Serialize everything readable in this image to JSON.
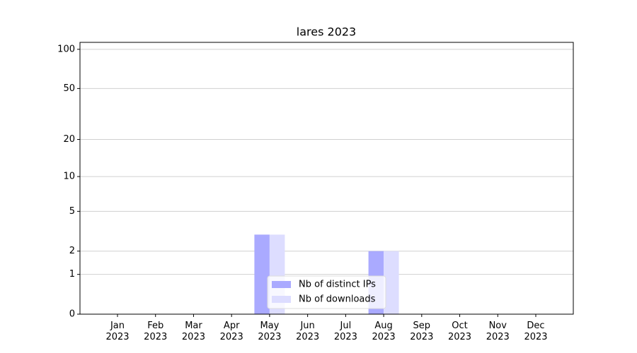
{
  "chart_data": {
    "type": "bar",
    "title": "lares 2023",
    "categories": [
      "Jan\n2023",
      "Feb\n2023",
      "Mar\n2023",
      "Apr\n2023",
      "May\n2023",
      "Jun\n2023",
      "Jul\n2023",
      "Aug\n2023",
      "Sep\n2023",
      "Oct\n2023",
      "Nov\n2023",
      "Dec\n2023"
    ],
    "series": [
      {
        "name": "Nb of distinct IPs",
        "color": "#aaaaff",
        "values": [
          0,
          0,
          0,
          0,
          3,
          0,
          0,
          2,
          0,
          0,
          0,
          0
        ]
      },
      {
        "name": "Nb of downloads",
        "color": "#ddddff",
        "values": [
          0,
          0,
          0,
          0,
          3,
          0,
          0,
          2,
          0,
          0,
          0,
          0
        ]
      }
    ],
    "yscale": "log1p",
    "ylim": [
      0,
      113
    ],
    "yticks": [
      0,
      1,
      2,
      5,
      10,
      20,
      50,
      100
    ],
    "grid": true,
    "legend": "lower center"
  }
}
